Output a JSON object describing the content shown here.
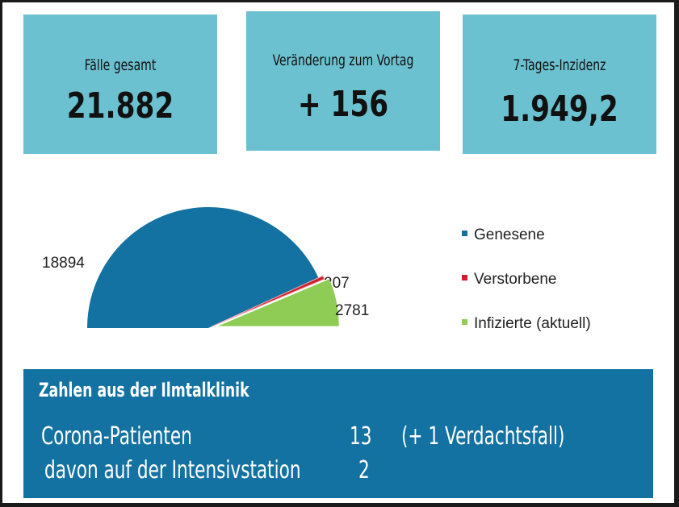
{
  "cards": [
    {
      "label": "Fälle gesamt",
      "value": "21.882"
    },
    {
      "label": "Veränderung zum Vortag",
      "value": "+ 156"
    },
    {
      "label": "7-Tages-Inzidenz",
      "value": "1.949,2"
    }
  ],
  "chart_data": {
    "type": "pie",
    "variant": "half-pie",
    "title": "",
    "categories": [
      "Genesene",
      "Verstorbene",
      "Infizierte (aktuell)"
    ],
    "values": [
      18894,
      207,
      2781
    ],
    "colors": [
      "#1472a2",
      "#d0202e",
      "#8fcc55"
    ],
    "data_labels": [
      "18894",
      "207",
      "2781"
    ],
    "legend": {
      "position": "right",
      "entries": [
        "Genesene",
        "Verstorbene",
        "Infizierte (aktuell)"
      ]
    }
  },
  "clinic": {
    "title": "Zahlen aus der Ilmtalklinik",
    "rows": [
      {
        "label": "Corona-Patienten",
        "value": "13",
        "note": "(+ 1 Verdachtsfall)"
      },
      {
        "label": "davon auf der Intensivstation",
        "value": "2",
        "note": ""
      }
    ]
  }
}
